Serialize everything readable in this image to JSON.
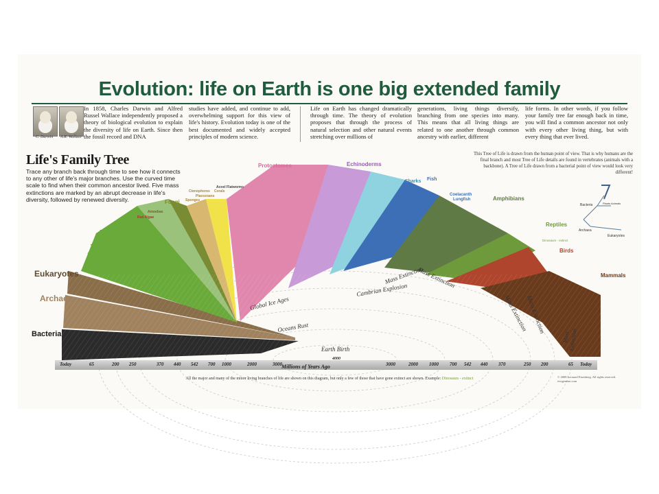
{
  "title": "Evolution: life on Earth is one big extended family",
  "intro": [
    "In 1858, Charles Darwin and Alfred Russel Wallace independently proposed a theory of biological evolution to explain the diversity of life on Earth. Since then the fossil record and DNA",
    "studies have added, and continue to add, overwhelming support for this view of life's history. Evolution today is one of the best documented and widely accepted principles of modern science.",
    "Life on Earth has changed dramatically through time. The theory of evolution proposes that through the process of natural selection and other natural events stretching over millions of",
    "generations, living things diversify, branching from one species into many. This means that all living things are related to one another through common ancestry with earlier, different",
    "life forms. In other words, if you follow your family tree far enough back in time, you will find a common ancestor not only with every other living thing, but with every thing that ever lived."
  ],
  "family_tree": {
    "title": "Life's Family Tree",
    "description": "Trace any branch back through time to see how it connects to any other of life's major branches. Use the curved time scale to find when their common ancestor lived. Five mass extinctions are marked by an abrupt decrease in life's diversity, followed by renewed diversity."
  },
  "human_note": "This Tree of Life is drawn from the human point of view. That is why humans are the final branch and most Tree of Life details are found in vertebrates (animals with a backbone). A Tree of Life drawn from a bacterial point of view would look very different!",
  "groups": {
    "bacteria": "Bacteria",
    "archaea": "Archaea",
    "eukaryotes": "Eukaryotes",
    "plants": "Plants",
    "red_algae": "Red Algae",
    "amoebas": "Amoebas",
    "fungi": "Fungi",
    "sponges": "Sponges",
    "ctenophores": "Ctenophores",
    "placozoans": "Placozoans",
    "corals": "Corals",
    "acoel_flatworms": "Acoel Flatworms",
    "protostomes": "Protostomes",
    "echinoderms": "Echinoderms",
    "sharks": "Sharks",
    "fish": "Fish",
    "coelacanth": "Coelacanth",
    "lungfish": "Lungfish",
    "amphibians": "Amphibians",
    "reptiles": "Reptiles",
    "birds": "Birds",
    "mammals": "Mammals"
  },
  "minor_labels": {
    "dinosaurs": "Dinosaurs - extinct",
    "humans": "humans"
  },
  "inset_labels": [
    "Bacteria",
    "Archaea",
    "Plants",
    "Animals",
    "Eukaryotes"
  ],
  "events": {
    "global_ice_ages": "Global Ice Ages",
    "oceans_rust": "Oceans Rust",
    "earth_birth": "Earth Birth",
    "cambrian_explosion": "Cambrian Explosion",
    "mass_extinction": "Mass Extinction",
    "extinction": "Extinction"
  },
  "timeline": {
    "axis_label": "Millions of Years Ago",
    "center": "4000",
    "left": [
      "Today",
      "65",
      "200",
      "250",
      "370",
      "440",
      "542",
      "700",
      "1000",
      "2000",
      "3000"
    ],
    "right": [
      "3000",
      "2000",
      "1000",
      "700",
      "542",
      "440",
      "370",
      "250",
      "200",
      "65",
      "Today"
    ]
  },
  "footnote": "All the major and many of the minor living branches of life are shown on this diagram, but only a few of those that have gone extinct are shown. Example:",
  "footnote_example": "Dinosaurs - extinct",
  "copyright": [
    "© 2008 Leonard Eisenberg. All rights reserved.",
    "evogeneao.com"
  ],
  "signatures": [
    "C. Darwin",
    "A.R. Wallace"
  ],
  "colors": {
    "title": "#1f5b3c",
    "bacteria": "#2b2b2b",
    "archaea": "#a0825f",
    "eukaryotes": "#5e4a30",
    "plants": "#6aaa3a",
    "fungi": "#7a8c33",
    "sponges": "#d8b870",
    "corals": "#f2e24a",
    "protostomes": "#d86a99",
    "echinoderms": "#b07cc6",
    "sharks": "#7fc6d8",
    "fish": "#3c6fb6",
    "amphibians": "#5f7a45",
    "reptiles": "#6f9a3c",
    "birds": "#b0452e",
    "mammals": "#6a3a1c"
  }
}
